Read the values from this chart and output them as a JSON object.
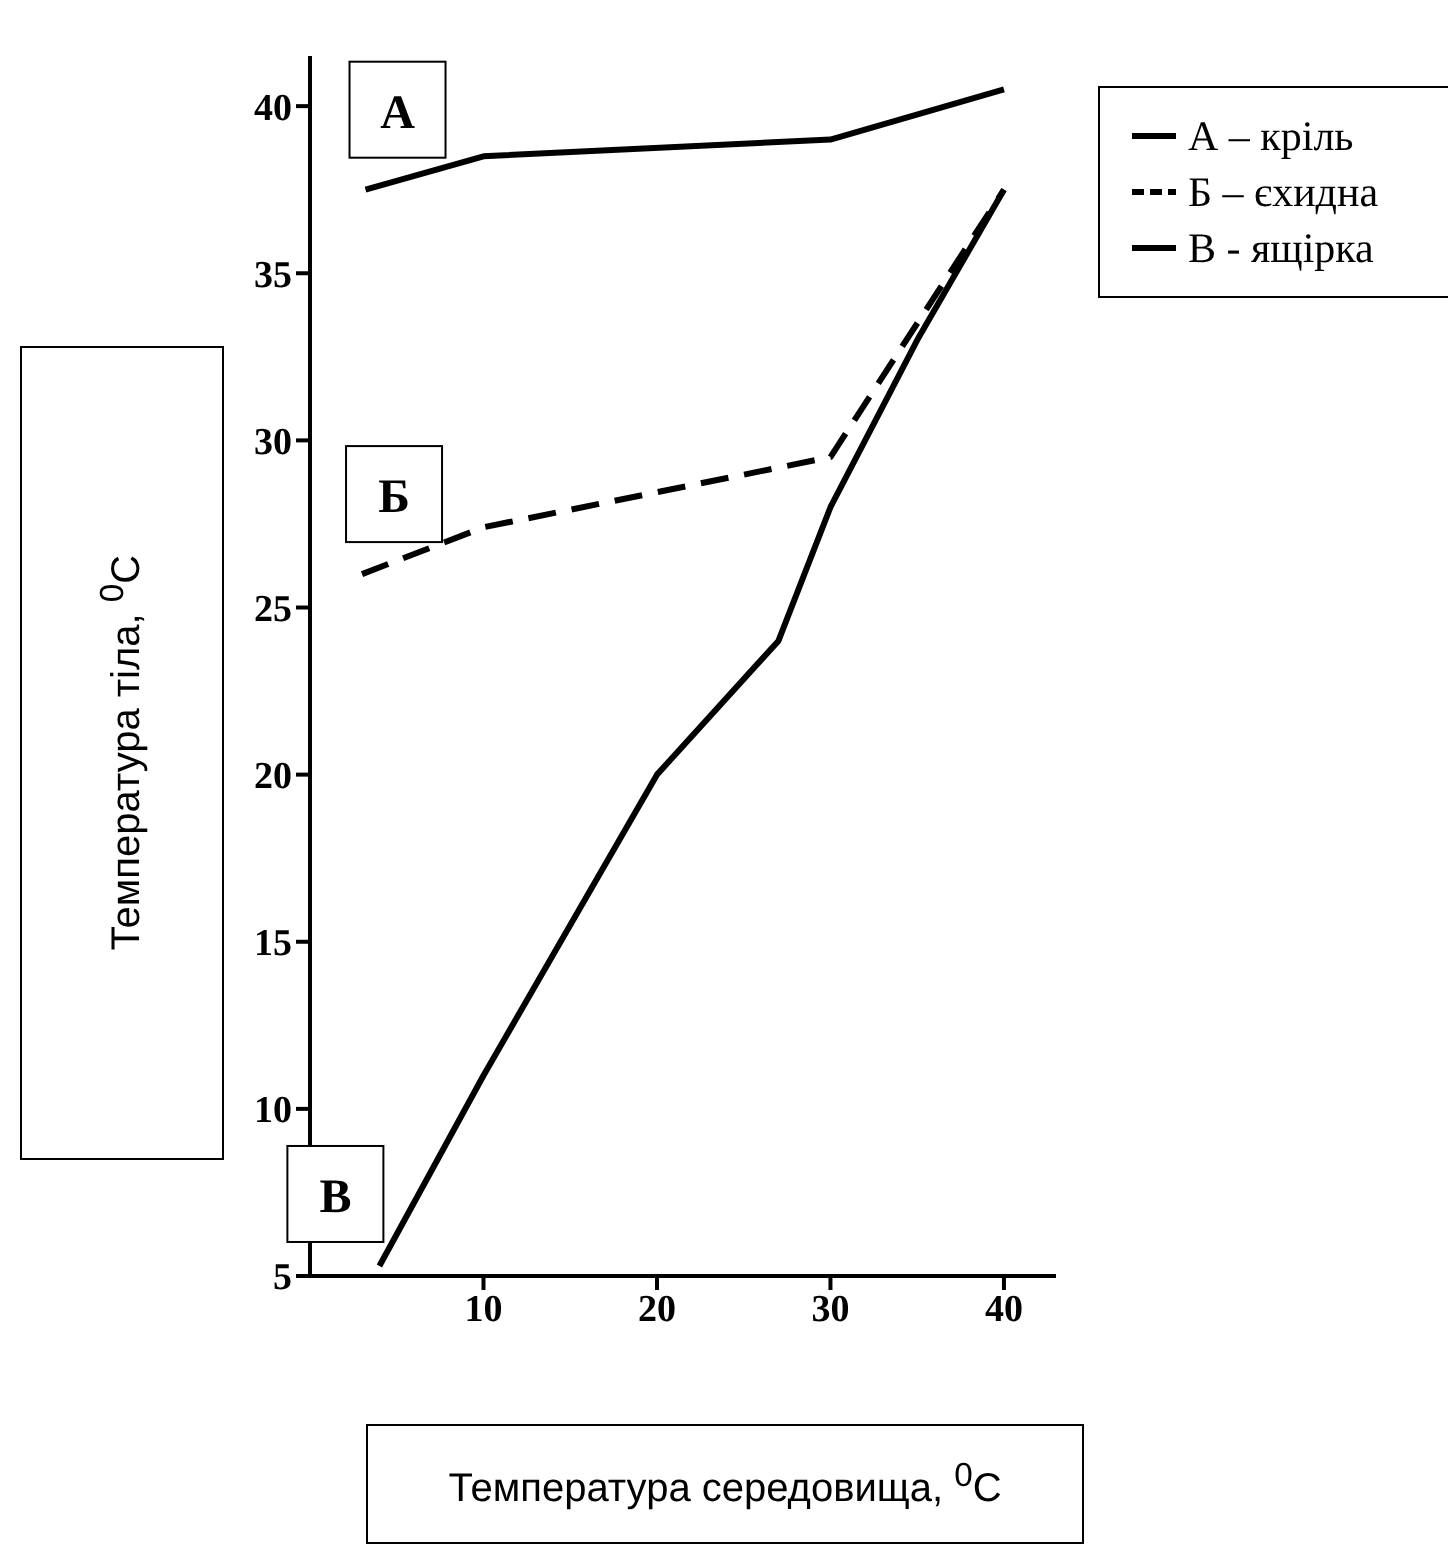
{
  "chart_data": {
    "type": "line",
    "xlabel": "Температура середовища, $^{0}$C",
    "ylabel": "Температура тіла, $^{0}$C",
    "xlim": [
      0,
      43
    ],
    "xticks": [
      10,
      20,
      30,
      40
    ],
    "ylim": [
      5,
      41.5
    ],
    "yticks": [
      5,
      10,
      15,
      20,
      25,
      30,
      35,
      40
    ],
    "grid": false,
    "legend": "top right",
    "marker": "none",
    "series": [
      {
        "name": "А – кріль",
        "color": "#000000",
        "line_style": "solid",
        "x": [
          3.2,
          10,
          30,
          40
        ],
        "values": [
          37.5,
          38.5,
          39,
          40.5
        ]
      },
      {
        "name": "Б – єхидна",
        "color": "#000000",
        "line_style": "dashed",
        "x": [
          3,
          10,
          30,
          40
        ],
        "values": [
          26,
          27.4,
          29.5,
          37.5
        ]
      },
      {
        "name": "В - ящірка",
        "color": "#000000",
        "line_style": "solid",
        "x": [
          4,
          10,
          20,
          27,
          30,
          35,
          40
        ],
        "values": [
          5.3,
          11,
          20,
          24,
          28,
          33,
          37.5
        ]
      }
    ],
    "annotations": [
      "А",
      "Б",
      "В"
    ]
  }
}
